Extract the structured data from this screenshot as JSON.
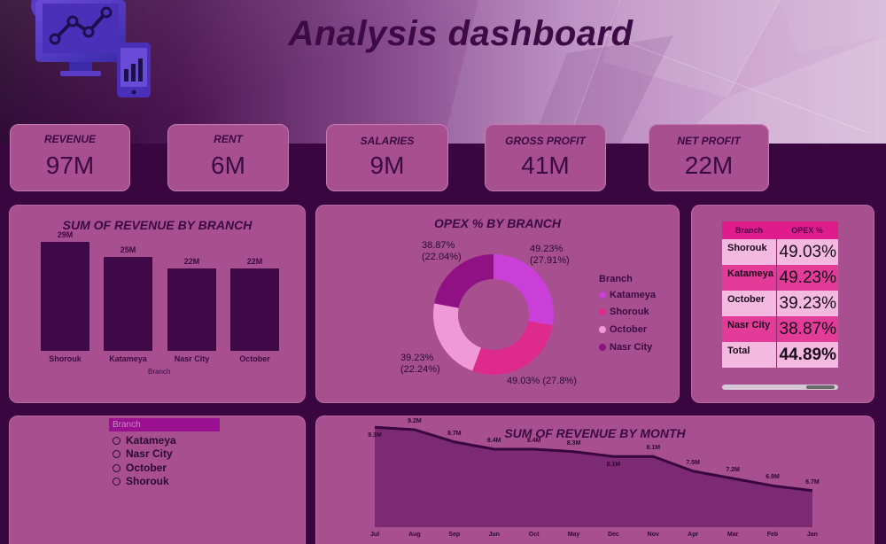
{
  "header": {
    "title": "Analysis dashboard"
  },
  "colors": {
    "accent_dark": "#3f0848",
    "panel": "#a8508f",
    "katameya": "#c93fd8",
    "shorouk": "#de2a8c",
    "october": "#ef9ad6",
    "nasr_city": "#8f1184"
  },
  "kpis": [
    {
      "label": "REVENUE",
      "value": "97M"
    },
    {
      "label": "RENT",
      "value": "6M"
    },
    {
      "label": "SALARIES",
      "value": "9M"
    },
    {
      "label": "GROSS PROFIT",
      "value": "41M"
    },
    {
      "label": "NET PROFIT",
      "value": "22M"
    }
  ],
  "revenue_by_branch": {
    "title": "SUM OF REVENUE BY BRANCH",
    "xlabel": "Branch",
    "bars": [
      {
        "category": "Shorouk",
        "value": 29,
        "label": "29M"
      },
      {
        "category": "Katameya",
        "value": 25,
        "label": "25M"
      },
      {
        "category": "Nasr City",
        "value": 22,
        "label": "22M"
      },
      {
        "category": "October",
        "value": 22,
        "label": "22M"
      }
    ]
  },
  "opex_donut": {
    "title": "OPEX % BY BRANCH",
    "legend_title": "Branch",
    "slices": [
      {
        "name": "Katameya",
        "value": 27.91,
        "label": "49.23%\n(27.91%)",
        "color": "#c93fd8"
      },
      {
        "name": "Shorouk",
        "value": 27.8,
        "label": "49.03% (27.8%)",
        "color": "#de2a8c"
      },
      {
        "name": "October",
        "value": 22.24,
        "label": "39.23%\n(22.24%)",
        "color": "#ef9ad6"
      },
      {
        "name": "Nasr City",
        "value": 22.04,
        "label": "38.87%\n(22.04%)",
        "color": "#8f1184"
      }
    ]
  },
  "opex_table": {
    "headers": [
      "Branch",
      "OPEX %"
    ],
    "rows": [
      {
        "branch": "Shorouk",
        "opex": "49.03%"
      },
      {
        "branch": "Katameya",
        "opex": "49.23%"
      },
      {
        "branch": "October",
        "opex": "39.23%"
      },
      {
        "branch": "Nasr City",
        "opex": "38.87%"
      }
    ],
    "total": {
      "branch": "Total",
      "opex": "44.89%"
    }
  },
  "slicer": {
    "header": "Branch",
    "options": [
      "Katameya",
      "Nasr City",
      "October",
      "Shorouk"
    ]
  },
  "chart_data": [
    {
      "type": "bar",
      "title": "SUM OF REVENUE BY BRANCH",
      "categories": [
        "Shorouk",
        "Katameya",
        "Nasr City",
        "October"
      ],
      "values": [
        29,
        25,
        22,
        22
      ],
      "xlabel": "Branch",
      "ylabel": ""
    },
    {
      "type": "pie",
      "title": "OPEX % BY BRANCH",
      "categories": [
        "Katameya",
        "Shorouk",
        "October",
        "Nasr City"
      ],
      "values": [
        27.91,
        27.8,
        22.24,
        22.04
      ]
    },
    {
      "type": "area",
      "title": "SUM OF REVENUE BY MONTH",
      "categories": [
        "Jul",
        "Aug",
        "Sep",
        "Jun",
        "Oct",
        "May",
        "Dec",
        "Nov",
        "Apr",
        "Mar",
        "Feb",
        "Jan"
      ],
      "values": [
        9.3,
        9.2,
        8.7,
        8.4,
        8.4,
        8.3,
        8.1,
        8.1,
        7.5,
        7.2,
        6.9,
        6.7
      ],
      "labels": [
        "9.3M",
        "9.2M",
        "8.7M",
        "8.4M",
        "8.4M",
        "8.3M",
        "8.1M",
        "8.1M",
        "7.5M",
        "7.2M",
        "6.9M",
        "6.7M"
      ],
      "ylim": [
        5.2,
        9.6
      ]
    }
  ]
}
